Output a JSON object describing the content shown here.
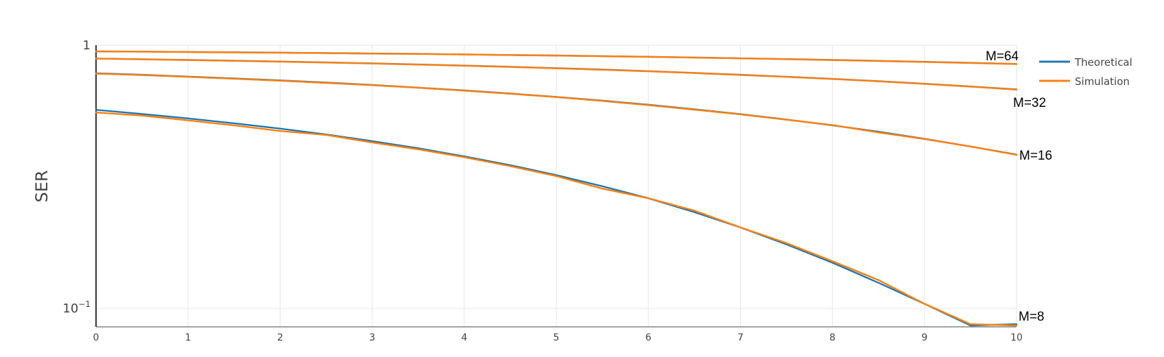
{
  "chart_data": {
    "type": "line",
    "title": "",
    "xlabel": "",
    "ylabel": "SER",
    "y_scale": "log",
    "xlim": [
      0,
      10
    ],
    "ylim": [
      0.085,
      1.0
    ],
    "grid": true,
    "legend_placement": "top-right",
    "x_ticks": [
      "0",
      "1",
      "2",
      "3",
      "4",
      "5",
      "6",
      "7",
      "8",
      "9",
      "10"
    ],
    "y_ticks": [
      {
        "value": 1,
        "label": "1",
        "exp": ""
      },
      {
        "value": 0.1,
        "label": "10",
        "exp": "−1"
      }
    ],
    "legend": [
      {
        "name": "Theoretical",
        "color": "#1f77b4"
      },
      {
        "name": "Simulation",
        "color": "#ff7f0e"
      }
    ],
    "x": [
      0,
      0.5,
      1,
      1.5,
      2,
      2.5,
      3,
      3.5,
      4,
      4.5,
      5,
      5.5,
      6,
      6.5,
      7,
      7.5,
      8,
      8.5,
      9,
      9.5,
      10
    ],
    "series": [
      {
        "name": "Theoretical",
        "curve": "M=8",
        "color": "#1f77b4",
        "values": [
          0.568,
          0.548,
          0.527,
          0.505,
          0.482,
          0.458,
          0.432,
          0.406,
          0.378,
          0.35,
          0.321,
          0.291,
          0.262,
          0.232,
          0.203,
          0.175,
          0.149,
          0.125,
          0.104,
          0.086,
          0.087
        ]
      },
      {
        "name": "Simulation",
        "curve": "M=8",
        "color": "#ff7f0e",
        "values": [
          0.555,
          0.54,
          0.518,
          0.496,
          0.472,
          0.456,
          0.427,
          0.402,
          0.375,
          0.347,
          0.318,
          0.285,
          0.262,
          0.235,
          0.203,
          0.177,
          0.151,
          0.128,
          0.104,
          0.087,
          0.086
        ]
      },
      {
        "name": "Theoretical",
        "curve": "M=16",
        "color": "#1f77b4",
        "values": [
          0.782,
          0.772,
          0.76,
          0.748,
          0.735,
          0.721,
          0.706,
          0.69,
          0.673,
          0.655,
          0.636,
          0.616,
          0.594,
          0.571,
          0.547,
          0.522,
          0.496,
          0.469,
          0.441,
          0.412,
          0.384
        ]
      },
      {
        "name": "Simulation",
        "curve": "M=16",
        "color": "#ff7f0e",
        "values": [
          0.78,
          0.77,
          0.758,
          0.746,
          0.733,
          0.719,
          0.705,
          0.689,
          0.672,
          0.654,
          0.635,
          0.614,
          0.592,
          0.569,
          0.546,
          0.521,
          0.497,
          0.466,
          0.44,
          0.412,
          0.383
        ]
      },
      {
        "name": "Theoretical",
        "curve": "M=32",
        "color": "#1f77b4",
        "values": [
          0.89,
          0.885,
          0.879,
          0.873,
          0.867,
          0.86,
          0.853,
          0.845,
          0.837,
          0.828,
          0.818,
          0.808,
          0.797,
          0.785,
          0.772,
          0.759,
          0.745,
          0.73,
          0.714,
          0.697,
          0.679
        ]
      },
      {
        "name": "Simulation",
        "curve": "M=32",
        "color": "#ff7f0e",
        "values": [
          0.889,
          0.884,
          0.878,
          0.872,
          0.866,
          0.859,
          0.852,
          0.844,
          0.836,
          0.827,
          0.817,
          0.807,
          0.796,
          0.784,
          0.771,
          0.758,
          0.744,
          0.729,
          0.713,
          0.696,
          0.678
        ]
      },
      {
        "name": "Theoretical",
        "curve": "M=64",
        "color": "#1f77b4",
        "values": [
          0.948,
          0.946,
          0.943,
          0.94,
          0.937,
          0.934,
          0.93,
          0.927,
          0.923,
          0.918,
          0.914,
          0.909,
          0.904,
          0.898,
          0.892,
          0.886,
          0.879,
          0.872,
          0.865,
          0.857,
          0.849
        ]
      },
      {
        "name": "Simulation",
        "curve": "M=64",
        "color": "#ff7f0e",
        "values": [
          0.947,
          0.945,
          0.942,
          0.939,
          0.936,
          0.933,
          0.929,
          0.926,
          0.922,
          0.917,
          0.913,
          0.908,
          0.903,
          0.897,
          0.891,
          0.885,
          0.878,
          0.871,
          0.864,
          0.856,
          0.848
        ]
      }
    ],
    "annotations": [
      "M=64",
      "M=32",
      "M=16",
      "M=8"
    ]
  }
}
